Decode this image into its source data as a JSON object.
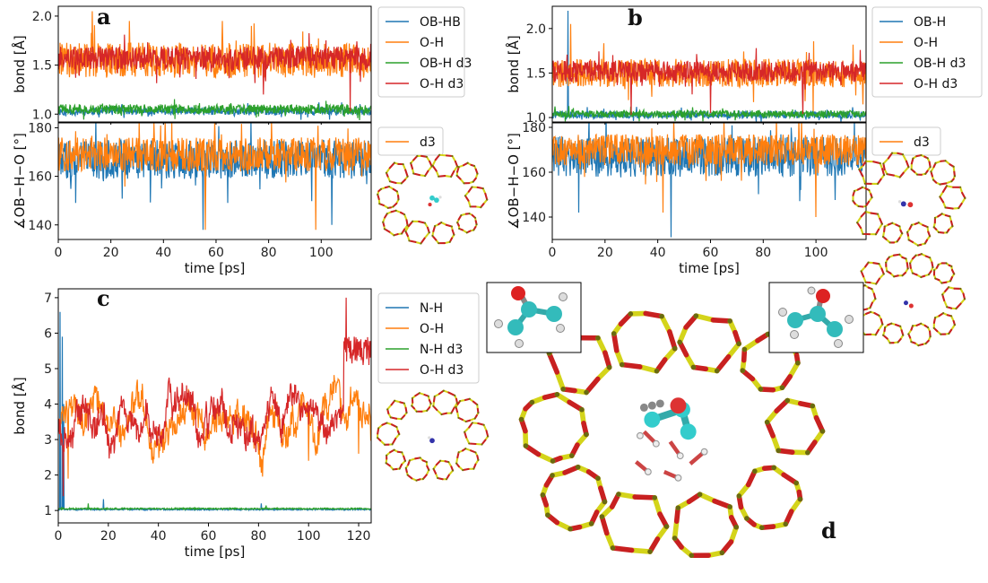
{
  "colors": {
    "blue": "#1f77b4",
    "orange": "#ff7f0e",
    "green": "#2ca02c",
    "red": "#d62728"
  },
  "panels": {
    "a": {
      "label": "a"
    },
    "b": {
      "label": "b"
    },
    "c": {
      "label": "c"
    },
    "d": {
      "label": "d"
    }
  },
  "chart_data": [
    {
      "id": "a-top",
      "type": "line",
      "xlabel": "",
      "ylabel": "bond [Å]",
      "xlim": [
        0,
        119
      ],
      "ylim": [
        0.92,
        2.1
      ],
      "yticks": [
        1.0,
        1.5,
        2.0
      ],
      "ytick_labels": [
        "1.0",
        "1.5",
        "2.0"
      ],
      "legend": {
        "placement": "outside-right"
      },
      "series": [
        {
          "name": "OB-HB",
          "color": "#1f77b4",
          "style": "noise",
          "base": 1.03,
          "amp": 0.04,
          "spikes": []
        },
        {
          "name": "O-H",
          "color": "#ff7f0e",
          "style": "noise",
          "base": 1.55,
          "amp": 0.18,
          "spikes": [
            [
              13,
              2.05
            ],
            [
              27,
              1.95
            ]
          ]
        },
        {
          "name": "OB-H d3",
          "color": "#2ca02c",
          "style": "noise",
          "base": 1.05,
          "amp": 0.05,
          "spikes": []
        },
        {
          "name": "O-H d3",
          "color": "#d62728",
          "style": "noise",
          "base": 1.57,
          "amp": 0.12,
          "spikes": [
            [
              111,
              1.03
            ],
            [
              78,
              1.2
            ]
          ]
        }
      ]
    },
    {
      "id": "a-bottom",
      "type": "line",
      "xlabel": "time [ps]",
      "ylabel": "∡OB−H−O [°]",
      "xlim": [
        0,
        119
      ],
      "ylim": [
        134,
        182
      ],
      "xticks": [
        0,
        20,
        40,
        60,
        80,
        100
      ],
      "xtick_labels": [
        "0",
        "20",
        "40",
        "60",
        "80",
        "100"
      ],
      "yticks": [
        140,
        160,
        180
      ],
      "ytick_labels": [
        "140",
        "160",
        "180"
      ],
      "legend": {
        "placement": "outside-right"
      },
      "series": [
        {
          "name": "",
          "color": "#1f77b4",
          "style": "noise",
          "base": 167,
          "amp": 8,
          "spikes": [
            [
              55,
              138
            ],
            [
              104,
              140
            ]
          ]
        },
        {
          "name": "d3",
          "color": "#ff7f0e",
          "style": "noise",
          "base": 169,
          "amp": 7,
          "spikes": [
            [
              56,
              138
            ],
            [
              98,
              138
            ]
          ]
        }
      ]
    },
    {
      "id": "b-top",
      "type": "line",
      "xlabel": "",
      "ylabel": "bond [Å]",
      "xlim": [
        0,
        119
      ],
      "ylim": [
        0.95,
        2.25
      ],
      "yticks": [
        1.0,
        1.5,
        2.0
      ],
      "ytick_labels": [
        "1.0",
        "1.5",
        "2.0"
      ],
      "legend": {
        "placement": "outside-right"
      },
      "series": [
        {
          "name": "OB-H",
          "color": "#1f77b4",
          "style": "noise",
          "base": 1.03,
          "amp": 0.04,
          "spikes": [
            [
              6,
              2.2
            ]
          ]
        },
        {
          "name": "O-H",
          "color": "#ff7f0e",
          "style": "noise",
          "base": 1.5,
          "amp": 0.16,
          "spikes": [
            [
              7,
              2.05
            ],
            [
              99,
              1.05
            ]
          ]
        },
        {
          "name": "OB-H d3",
          "color": "#2ca02c",
          "style": "noise",
          "base": 1.04,
          "amp": 0.04,
          "spikes": []
        },
        {
          "name": "O-H d3",
          "color": "#d62728",
          "style": "noise",
          "base": 1.52,
          "amp": 0.12,
          "spikes": [
            [
              30,
              1.03
            ],
            [
              60,
              1.05
            ],
            [
              95,
              1.04
            ]
          ]
        }
      ]
    },
    {
      "id": "b-bottom",
      "type": "line",
      "xlabel": "time [ps]",
      "ylabel": "∡OB−H−O [°]",
      "xlim": [
        0,
        119
      ],
      "ylim": [
        130,
        182
      ],
      "xticks": [
        0,
        20,
        40,
        60,
        80,
        100
      ],
      "xtick_labels": [
        "0",
        "20",
        "40",
        "60",
        "80",
        "100"
      ],
      "yticks": [
        140,
        160,
        180
      ],
      "ytick_labels": [
        "140",
        "160",
        "180"
      ],
      "legend": {
        "placement": "outside-right"
      },
      "series": [
        {
          "name": "",
          "color": "#1f77b4",
          "style": "noise",
          "base": 167,
          "amp": 9,
          "spikes": [
            [
              45,
              131
            ],
            [
              10,
              142
            ]
          ]
        },
        {
          "name": "d3",
          "color": "#ff7f0e",
          "style": "noise",
          "base": 170,
          "amp": 7,
          "spikes": [
            [
              42,
              142
            ],
            [
              100,
              140
            ]
          ]
        }
      ]
    },
    {
      "id": "c",
      "type": "line",
      "xlabel": "time [ps]",
      "ylabel": "bond [Å]",
      "xlim": [
        0,
        125
      ],
      "ylim": [
        0.65,
        7.25
      ],
      "xticks": [
        0,
        20,
        40,
        60,
        80,
        100,
        120
      ],
      "xtick_labels": [
        "0",
        "20",
        "40",
        "60",
        "80",
        "100",
        "120"
      ],
      "yticks": [
        1,
        2,
        3,
        4,
        5,
        6,
        7
      ],
      "ytick_labels": [
        "1",
        "2",
        "3",
        "4",
        "5",
        "6",
        "7"
      ],
      "legend": {
        "placement": "outside-right"
      },
      "series": [
        {
          "name": "N-H",
          "color": "#1f77b4",
          "style": "lowflat",
          "base": 1.03,
          "amp": 0.04,
          "spikes": [
            [
              0.8,
              6.6
            ],
            [
              1.6,
              5.9
            ],
            [
              2.2,
              4.0
            ],
            [
              18,
              1.32
            ],
            [
              81,
              1.2
            ]
          ]
        },
        {
          "name": "O-H",
          "color": "#ff7f0e",
          "style": "walk",
          "base": 3.4,
          "amp": 0.5,
          "spikes": [
            [
              4,
              1.9
            ],
            [
              100,
              2.4
            ],
            [
              120,
              2.6
            ]
          ]
        },
        {
          "name": "N-H d3",
          "color": "#2ca02c",
          "style": "lowflat",
          "base": 1.05,
          "amp": 0.04,
          "spikes": [
            [
              12,
              1.2
            ],
            [
              83,
              1.14
            ]
          ]
        },
        {
          "name": "O-H d3",
          "color": "#d62728",
          "style": "walk_jump",
          "base": 3.3,
          "amp": 0.5,
          "spikes": [
            [
              2,
              1.4
            ],
            [
              115,
              7.0
            ]
          ]
        }
      ]
    }
  ]
}
